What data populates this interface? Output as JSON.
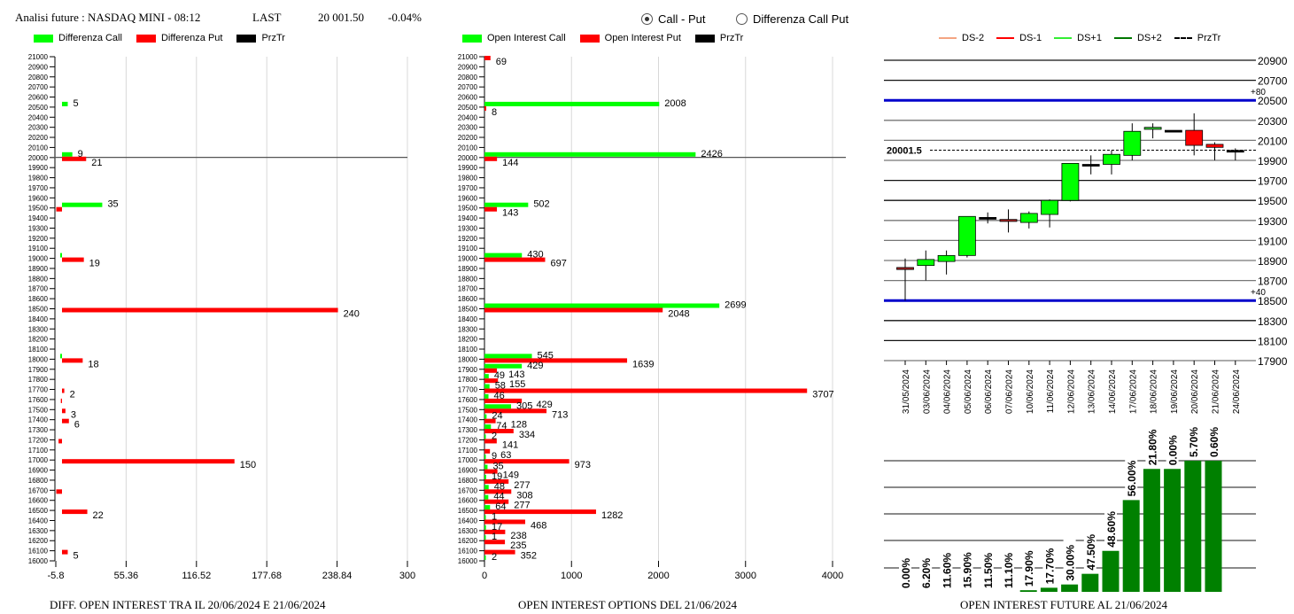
{
  "header": {
    "title": "Analisi future : NASDAQ MINI - 08:12",
    "last_label": "LAST",
    "last_value": "20 001.50",
    "change": "-0.04%"
  },
  "mode_selector": {
    "options": [
      {
        "label": "Call - Put",
        "selected": true
      },
      {
        "label": "Differenza Call Put",
        "selected": false
      }
    ]
  },
  "colors": {
    "call": "#00ff00",
    "put": "#ff0000",
    "przTr": "#000000",
    "band": "#0000cc",
    "oi_bar": "#008000",
    "ds_minus2": "#f4a582",
    "ds_minus1": "#ff0000",
    "ds_plus1": "#33ee33",
    "ds_plus2": "#007700"
  },
  "chart_data": [
    {
      "type": "bar",
      "orientation": "horizontal",
      "title": "DIFF. OPEN INTEREST TRA IL 20/06/2024 E 21/06/2024",
      "legend": [
        "Differenza Call",
        "Differenza Put",
        "PrzTr"
      ],
      "legend_placement": "top-left",
      "y_ticks": [
        21000,
        20900,
        20800,
        20700,
        20600,
        20500,
        20400,
        20300,
        20200,
        20100,
        20000,
        19900,
        19800,
        19700,
        19600,
        19500,
        19400,
        19300,
        19200,
        19100,
        19000,
        18900,
        18800,
        18700,
        18600,
        18500,
        18400,
        18300,
        18200,
        18100,
        18000,
        17900,
        17800,
        17700,
        17600,
        17500,
        17400,
        17300,
        17200,
        17100,
        17000,
        16900,
        16800,
        16700,
        16600,
        16500,
        16400,
        16300,
        16200,
        16100,
        16000
      ],
      "x_ticks": [
        "-5.8",
        "55.36",
        "116.52",
        "177.68",
        "238.84",
        "300"
      ],
      "xlim": [
        -5.8,
        300
      ],
      "ylim": [
        16000,
        21000
      ],
      "przTr": 20001.5,
      "series": [
        {
          "name": "Differenza Call",
          "points": [
            {
              "strike": 20500,
              "value": 5
            },
            {
              "strike": 20000,
              "value": 9
            },
            {
              "strike": 19500,
              "value": 35
            },
            {
              "strike": 19000,
              "value": -1
            },
            {
              "strike": 18000,
              "value": -1
            }
          ]
        },
        {
          "name": "Differenza Put",
          "points": [
            {
              "strike": 20000,
              "value": 21
            },
            {
              "strike": 19500,
              "value": -5
            },
            {
              "strike": 19000,
              "value": 19
            },
            {
              "strike": 18500,
              "value": 240
            },
            {
              "strike": 18000,
              "value": 18
            },
            {
              "strike": 17700,
              "value": 2
            },
            {
              "strike": 17600,
              "value": -1
            },
            {
              "strike": 17500,
              "value": 3
            },
            {
              "strike": 17400,
              "value": 6
            },
            {
              "strike": 17200,
              "value": -3
            },
            {
              "strike": 17000,
              "value": 150
            },
            {
              "strike": 16700,
              "value": -5
            },
            {
              "strike": 16500,
              "value": 22
            },
            {
              "strike": 16100,
              "value": 5
            }
          ]
        }
      ],
      "labels": [
        {
          "strike": 20500,
          "text": "5",
          "series": "call"
        },
        {
          "strike": 20000,
          "text": "9",
          "series": "call"
        },
        {
          "strike": 20000,
          "text": "21",
          "series": "put"
        },
        {
          "strike": 19500,
          "text": "35",
          "series": "call"
        },
        {
          "strike": 19000,
          "text": "19",
          "series": "put"
        },
        {
          "strike": 18500,
          "text": "240",
          "series": "put"
        },
        {
          "strike": 18000,
          "text": "18",
          "series": "put"
        },
        {
          "strike": 17700,
          "text": "2",
          "series": "put"
        },
        {
          "strike": 17500,
          "text": "3",
          "series": "put"
        },
        {
          "strike": 17400,
          "text": "6",
          "series": "put"
        },
        {
          "strike": 17000,
          "text": "150",
          "series": "put"
        },
        {
          "strike": 16500,
          "text": "22",
          "series": "put"
        },
        {
          "strike": 16100,
          "text": "5",
          "series": "put"
        }
      ]
    },
    {
      "type": "bar",
      "orientation": "horizontal",
      "title": "OPEN INTEREST OPTIONS DEL 21/06/2024",
      "legend": [
        "Open Interest Call",
        "Open Interest Put",
        "PrzTr"
      ],
      "legend_placement": "top-left",
      "x_ticks": [
        "0",
        "1000",
        "2000",
        "3000",
        "4000"
      ],
      "xlim": [
        0,
        4000
      ],
      "ylim": [
        16000,
        21000
      ],
      "przTr": 20001.5,
      "series": [
        {
          "name": "Open Interest Call",
          "points": [
            {
              "strike": 20500,
              "value": 2008
            },
            {
              "strike": 20000,
              "value": 2426
            },
            {
              "strike": 19500,
              "value": 502
            },
            {
              "strike": 19000,
              "value": 430
            },
            {
              "strike": 18500,
              "value": 2699
            },
            {
              "strike": 18000,
              "value": 545
            },
            {
              "strike": 17900,
              "value": 429
            },
            {
              "strike": 17800,
              "value": 49
            },
            {
              "strike": 17700,
              "value": 58
            },
            {
              "strike": 17600,
              "value": 46
            },
            {
              "strike": 17500,
              "value": 305
            },
            {
              "strike": 17400,
              "value": 24
            },
            {
              "strike": 17300,
              "value": 74
            },
            {
              "strike": 17200,
              "value": 2
            },
            {
              "strike": 17000,
              "value": 9
            },
            {
              "strike": 16900,
              "value": 35
            },
            {
              "strike": 16800,
              "value": 19
            },
            {
              "strike": 16700,
              "value": 48
            },
            {
              "strike": 16600,
              "value": 44
            },
            {
              "strike": 16500,
              "value": 64
            },
            {
              "strike": 16400,
              "value": 1
            },
            {
              "strike": 16300,
              "value": 17
            },
            {
              "strike": 16200,
              "value": 1
            },
            {
              "strike": 16000,
              "value": 2
            }
          ]
        },
        {
          "name": "Open Interest Put",
          "points": [
            {
              "strike": 21000,
              "value": 69
            },
            {
              "strike": 20500,
              "value": 8
            },
            {
              "strike": 20000,
              "value": 144
            },
            {
              "strike": 19500,
              "value": 143
            },
            {
              "strike": 19000,
              "value": 697
            },
            {
              "strike": 18500,
              "value": 2048
            },
            {
              "strike": 18000,
              "value": 1639
            },
            {
              "strike": 17900,
              "value": 143
            },
            {
              "strike": 17800,
              "value": 155
            },
            {
              "strike": 17700,
              "value": 3707
            },
            {
              "strike": 17600,
              "value": 429
            },
            {
              "strike": 17500,
              "value": 713
            },
            {
              "strike": 17400,
              "value": 128
            },
            {
              "strike": 17300,
              "value": 334
            },
            {
              "strike": 17200,
              "value": 141
            },
            {
              "strike": 17100,
              "value": 63
            },
            {
              "strike": 17000,
              "value": 973
            },
            {
              "strike": 16900,
              "value": 149
            },
            {
              "strike": 16800,
              "value": 277
            },
            {
              "strike": 16700,
              "value": 308
            },
            {
              "strike": 16600,
              "value": 277
            },
            {
              "strike": 16500,
              "value": 1282
            },
            {
              "strike": 16400,
              "value": 468
            },
            {
              "strike": 16300,
              "value": 238
            },
            {
              "strike": 16200,
              "value": 235
            },
            {
              "strike": 16100,
              "value": 352
            }
          ]
        }
      ]
    },
    {
      "type": "candlestick",
      "title": "",
      "legend": [
        "DS-2",
        "DS-1",
        "DS+1",
        "DS+2",
        "PrzTr"
      ],
      "legend_placement": "top",
      "y_ticks": [
        20900,
        20700,
        20500,
        20300,
        20100,
        19900,
        19700,
        19500,
        19300,
        19100,
        18900,
        18700,
        18500,
        18300,
        18100,
        17900
      ],
      "ylim": [
        17900,
        20900
      ],
      "przTr_label": "20001.5",
      "przTr": 20001.5,
      "bands": [
        {
          "value": 20500,
          "label": "+80"
        },
        {
          "value": 18500,
          "label": "+40"
        }
      ],
      "candles": [
        {
          "date": "31/05/2024",
          "open": 18830,
          "high": 18920,
          "low": 18500,
          "close": 18810
        },
        {
          "date": "03/06/2024",
          "open": 18850,
          "high": 19000,
          "low": 18700,
          "close": 18910
        },
        {
          "date": "04/06/2024",
          "open": 18890,
          "high": 19000,
          "low": 18760,
          "close": 18950
        },
        {
          "date": "05/06/2024",
          "open": 18950,
          "high": 19340,
          "low": 18930,
          "close": 19340
        },
        {
          "date": "06/06/2024",
          "open": 19330,
          "high": 19380,
          "low": 19270,
          "close": 19330
        },
        {
          "date": "07/06/2024",
          "open": 19310,
          "high": 19410,
          "low": 19180,
          "close": 19290
        },
        {
          "date": "10/06/2024",
          "open": 19280,
          "high": 19390,
          "low": 19220,
          "close": 19370
        },
        {
          "date": "11/06/2024",
          "open": 19360,
          "high": 19510,
          "low": 19230,
          "close": 19500
        },
        {
          "date": "12/06/2024",
          "open": 19500,
          "high": 19870,
          "low": 19490,
          "close": 19870
        },
        {
          "date": "13/06/2024",
          "open": 19860,
          "high": 19950,
          "low": 19760,
          "close": 19860
        },
        {
          "date": "14/06/2024",
          "open": 19860,
          "high": 20000,
          "low": 19760,
          "close": 19960
        },
        {
          "date": "17/06/2024",
          "open": 19950,
          "high": 20270,
          "low": 19900,
          "close": 20190
        },
        {
          "date": "18/06/2024",
          "open": 20210,
          "high": 20270,
          "low": 20120,
          "close": 20230
        },
        {
          "date": "19/06/2024",
          "open": 20200,
          "high": 20200,
          "low": 20200,
          "close": 20200
        },
        {
          "date": "20/06/2024",
          "open": 20200,
          "high": 20370,
          "low": 19950,
          "close": 20050
        },
        {
          "date": "21/06/2024",
          "open": 20060,
          "high": 20080,
          "low": 19900,
          "close": 20030
        },
        {
          "date": "24/06/2024",
          "open": 20000,
          "high": 20020,
          "low": 19900,
          "close": 20000
        }
      ]
    },
    {
      "type": "bar",
      "title": "OPEN INTEREST FUTURE AL 21/06/2024",
      "categories": [
        "31/05/2024",
        "03/06/2024",
        "04/06/2024",
        "05/06/2024",
        "06/06/2024",
        "07/06/2024",
        "10/06/2024",
        "11/06/2024",
        "12/06/2024",
        "13/06/2024",
        "14/06/2024",
        "17/06/2024",
        "18/06/2024",
        "19/06/2024",
        "20/06/2024",
        "21/06/2024"
      ],
      "values": [
        0,
        0,
        0,
        0,
        0,
        0,
        2,
        5,
        9,
        22,
        50,
        112,
        150,
        150,
        160,
        160
      ],
      "value_labels": [
        "0.00%",
        "6.20%",
        "11.60%",
        "15.90%",
        "11.50%",
        "11.10%",
        "17.90%",
        "17.70%",
        "30.00%",
        "47.50%",
        "48.60%",
        "56.00%",
        "21.80%",
        "0.00%",
        "5.70%",
        "0.60%"
      ],
      "ylim": [
        0,
        160
      ]
    }
  ]
}
